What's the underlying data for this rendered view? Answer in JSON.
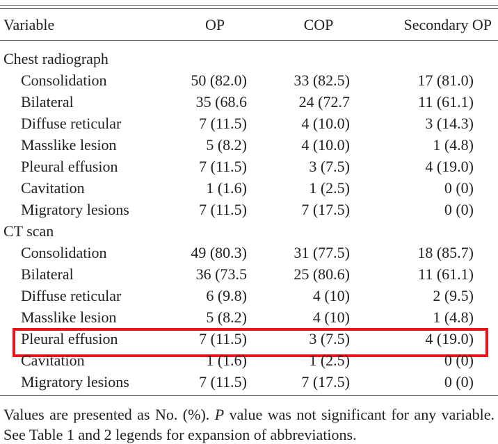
{
  "header": [
    "Variable",
    "OP",
    "COP",
    "Secondary OP"
  ],
  "sections": [
    {
      "title": "Chest radiograph",
      "rows": [
        [
          "Consolidation",
          "50 (82.0)",
          "33 (82.5)",
          "17 (81.0)"
        ],
        [
          "Bilateral",
          "35 (68.6",
          "24 (72.7",
          "11 (61.1)"
        ],
        [
          "Diffuse reticular",
          "7 (11.5)",
          "4 (10.0)",
          "3 (14.3)"
        ],
        [
          "Masslike lesion",
          "5 (8.2)",
          "4 (10.0)",
          "1 (4.8)"
        ],
        [
          "Pleural effusion",
          "7 (11.5)",
          "3 (7.5)",
          "4 (19.0)"
        ],
        [
          "Cavitation",
          "1 (1.6)",
          "1 (2.5)",
          "0 (0)"
        ],
        [
          "Migratory lesions",
          "7 (11.5)",
          "7 (17.5)",
          "0 (0)"
        ]
      ]
    },
    {
      "title": "CT scan",
      "rows": [
        [
          "Consolidation",
          "49 (80.3)",
          "31 (77.5)",
          "18 (85.7)"
        ],
        [
          "Bilateral",
          "36 (73.5",
          "25 (80.6)",
          "11 (61.1)"
        ],
        [
          "Diffuse reticular",
          "6 (9.8)",
          "4 (10)",
          "2 (9.5)"
        ],
        [
          "Masslike lesion",
          "5 (8.2)",
          "4 (10)",
          "1 (4.8)"
        ],
        [
          "Pleural effusion",
          "7 (11.5)",
          "3 (7.5)",
          "4 (19.0)"
        ],
        [
          "Cavitation",
          "1 (1.6)",
          "1 (2.5)",
          "0 (0)"
        ],
        [
          "Migratory lesions",
          "7 (11.5)",
          "7 (17.5)",
          "0 (0)"
        ]
      ]
    }
  ],
  "footnote": [
    "Values are presented as No. (%). ",
    "P",
    " value was not significant for any variable. See Table 1 and 2 legends for expansion of abbreviations."
  ]
}
